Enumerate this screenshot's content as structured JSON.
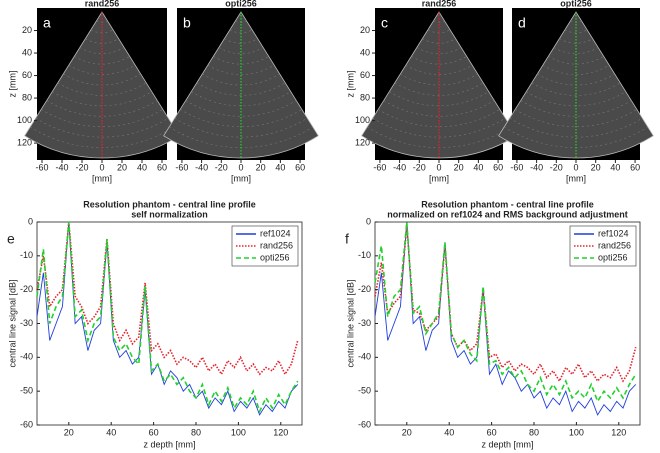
{
  "chart_data": [
    {
      "type": "image",
      "title": "rand256",
      "label": "a",
      "line_color": "#e8202a",
      "xlim": [
        -65,
        65
      ],
      "ylim": [
        0,
        135
      ],
      "y_inverted": true,
      "xticks": [
        -60,
        -40,
        -20,
        0,
        20,
        40,
        60
      ],
      "yticks": [
        20,
        40,
        60,
        80,
        100,
        120
      ],
      "xlabel": "[mm]",
      "ylabel": "z [mm]"
    },
    {
      "type": "image",
      "title": "opti256",
      "label": "b",
      "line_color": "#22d12e",
      "xlim": [
        -65,
        65
      ],
      "ylim": [
        0,
        135
      ],
      "y_inverted": true,
      "xticks": [
        -60,
        -40,
        -20,
        0,
        20,
        40,
        60
      ],
      "xlabel": "[mm]"
    },
    {
      "type": "image",
      "title": "rand256",
      "label": "c",
      "line_color": "#e8202a",
      "xlim": [
        -65,
        65
      ],
      "ylim": [
        0,
        135
      ],
      "y_inverted": true,
      "xticks": [
        -60,
        -40,
        -20,
        0,
        20,
        40,
        60
      ],
      "yticks": [
        20,
        40,
        60,
        80,
        100,
        120
      ],
      "xlabel": "[mm]",
      "ylabel": "z [mm]"
    },
    {
      "type": "image",
      "title": "opti256",
      "label": "d",
      "line_color": "#22d12e",
      "xlim": [
        -65,
        65
      ],
      "ylim": [
        0,
        135
      ],
      "y_inverted": true,
      "xticks": [
        -60,
        -40,
        -20,
        0,
        20,
        40,
        60
      ],
      "xlabel": "[mm]"
    },
    {
      "type": "line",
      "title": "Resolution phantom - central line profile",
      "subtitle": "self normalization",
      "label": "e",
      "xlabel": "z depth [mm]",
      "ylabel": "central line signal [dB]",
      "xlim": [
        5,
        130
      ],
      "ylim": [
        -60,
        0
      ],
      "xticks": [
        20,
        40,
        60,
        80,
        100,
        120
      ],
      "yticks": [
        -60,
        -50,
        -40,
        -30,
        -20,
        -10,
        0
      ],
      "legend": "upper right",
      "x": [
        5,
        8,
        11,
        14,
        17,
        20,
        23,
        26,
        29,
        32,
        35,
        38,
        41,
        44,
        47,
        50,
        53,
        56,
        59,
        62,
        65,
        68,
        71,
        74,
        77,
        80,
        83,
        86,
        89,
        92,
        95,
        98,
        101,
        104,
        107,
        110,
        113,
        116,
        119,
        122,
        125,
        128
      ],
      "series": [
        {
          "name": "ref1024",
          "color": "#1f3fdc",
          "style": "solid",
          "values": [
            -28,
            -15,
            -35,
            -30,
            -25,
            0,
            -30,
            -28,
            -38,
            -32,
            -30,
            -6,
            -35,
            -40,
            -38,
            -42,
            -40,
            -20,
            -45,
            -42,
            -48,
            -44,
            -46,
            -50,
            -48,
            -52,
            -50,
            -55,
            -52,
            -54,
            -50,
            -56,
            -53,
            -55,
            -52,
            -57,
            -54,
            -56,
            -53,
            -55,
            -50,
            -48
          ]
        },
        {
          "name": "rand256",
          "color": "#e8202a",
          "style": "dotted",
          "values": [
            -20,
            -10,
            -25,
            -22,
            -20,
            0,
            -22,
            -25,
            -30,
            -28,
            -25,
            -5,
            -30,
            -35,
            -32,
            -36,
            -34,
            -18,
            -38,
            -36,
            -40,
            -38,
            -42,
            -40,
            -41,
            -43,
            -40,
            -44,
            -42,
            -45,
            -41,
            -43,
            -40,
            -44,
            -42,
            -45,
            -43,
            -44,
            -41,
            -45,
            -42,
            -35
          ]
        },
        {
          "name": "opti256",
          "color": "#22d12e",
          "style": "dashed",
          "values": [
            -22,
            -8,
            -30,
            -25,
            -22,
            0,
            -28,
            -26,
            -35,
            -30,
            -28,
            -5,
            -34,
            -38,
            -36,
            -40,
            -42,
            -19,
            -44,
            -42,
            -47,
            -45,
            -48,
            -46,
            -50,
            -52,
            -48,
            -54,
            -50,
            -53,
            -49,
            -55,
            -52,
            -54,
            -50,
            -56,
            -52,
            -55,
            -51,
            -54,
            -50,
            -47
          ]
        }
      ]
    },
    {
      "type": "line",
      "title": "Resolution phantom - central line profile",
      "subtitle": "normalized on ref1024 and RMS background adjustment",
      "label": "f",
      "xlabel": "z depth [mm]",
      "ylabel": "central line signal [dB]",
      "xlim": [
        5,
        130
      ],
      "ylim": [
        -60,
        0
      ],
      "xticks": [
        20,
        40,
        60,
        80,
        100,
        120
      ],
      "yticks": [
        -60,
        -50,
        -40,
        -30,
        -20,
        -10,
        0
      ],
      "legend": "upper right",
      "x": [
        5,
        8,
        11,
        14,
        17,
        20,
        23,
        26,
        29,
        32,
        35,
        38,
        41,
        44,
        47,
        50,
        53,
        56,
        59,
        62,
        65,
        68,
        71,
        74,
        77,
        80,
        83,
        86,
        89,
        92,
        95,
        98,
        101,
        104,
        107,
        110,
        113,
        116,
        119,
        122,
        125,
        128
      ],
      "series": [
        {
          "name": "ref1024",
          "color": "#1f3fdc",
          "style": "solid",
          "values": [
            -28,
            -15,
            -35,
            -30,
            -25,
            0,
            -30,
            -28,
            -38,
            -32,
            -30,
            -6,
            -35,
            -40,
            -38,
            -42,
            -40,
            -20,
            -45,
            -42,
            -48,
            -44,
            -46,
            -50,
            -48,
            -52,
            -50,
            -55,
            -52,
            -54,
            -50,
            -56,
            -53,
            -55,
            -52,
            -57,
            -54,
            -56,
            -53,
            -55,
            -50,
            -48
          ]
        },
        {
          "name": "rand256",
          "color": "#e8202a",
          "style": "dotted",
          "values": [
            -22,
            -12,
            -27,
            -24,
            -22,
            -1,
            -26,
            -27,
            -32,
            -30,
            -28,
            -7,
            -33,
            -37,
            -35,
            -38,
            -36,
            -20,
            -40,
            -39,
            -43,
            -41,
            -44,
            -42,
            -43,
            -45,
            -42,
            -46,
            -44,
            -47,
            -43,
            -45,
            -42,
            -46,
            -44,
            -47,
            -45,
            -46,
            -43,
            -47,
            -44,
            -37
          ]
        },
        {
          "name": "opti256",
          "color": "#22d12e",
          "style": "dashed",
          "values": [
            -18,
            -7,
            -28,
            -22,
            -20,
            0,
            -27,
            -25,
            -33,
            -30,
            -27,
            -6,
            -33,
            -37,
            -35,
            -39,
            -41,
            -19,
            -42,
            -41,
            -45,
            -43,
            -46,
            -44,
            -48,
            -50,
            -46,
            -51,
            -48,
            -51,
            -47,
            -52,
            -50,
            -52,
            -48,
            -53,
            -50,
            -52,
            -49,
            -52,
            -48,
            -45
          ]
        }
      ]
    }
  ]
}
